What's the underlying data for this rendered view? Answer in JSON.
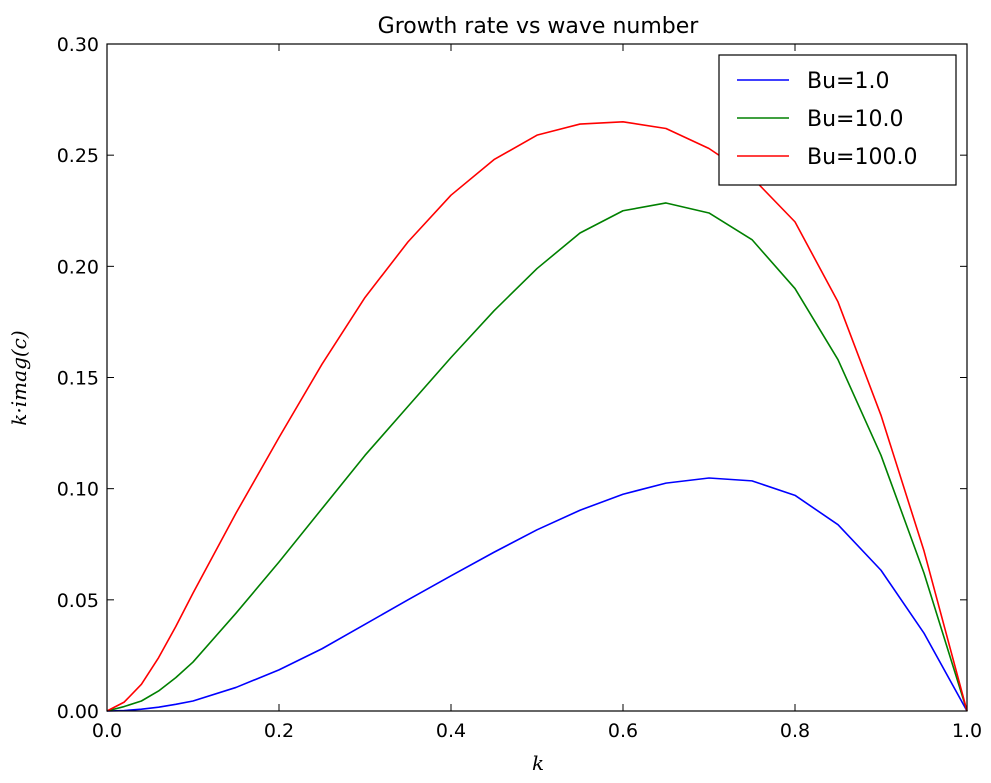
{
  "chart_data": {
    "type": "line",
    "title": "Growth rate vs wave number",
    "xlabel": "k",
    "ylabel": "k·imag(c)",
    "xlim": [
      0.0,
      1.0
    ],
    "ylim": [
      0.0,
      0.3
    ],
    "x_ticks": [
      "0.0",
      "0.2",
      "0.4",
      "0.6",
      "0.8",
      "1.0"
    ],
    "y_ticks": [
      "0.00",
      "0.05",
      "0.10",
      "0.15",
      "0.20",
      "0.25",
      "0.30"
    ],
    "grid": false,
    "legend_position": "top-right",
    "x": [
      0.0,
      0.02,
      0.04,
      0.06,
      0.08,
      0.1,
      0.15,
      0.2,
      0.25,
      0.3,
      0.35,
      0.4,
      0.45,
      0.5,
      0.55,
      0.6,
      0.65,
      0.7,
      0.75,
      0.8,
      0.85,
      0.9,
      0.95,
      1.0
    ],
    "series": [
      {
        "name": "Bu=1.0",
        "color": "#0000ff",
        "values": [
          0.0,
          0.0002,
          0.0008,
          0.0017,
          0.003,
          0.0045,
          0.0106,
          0.0185,
          0.028,
          0.039,
          0.05,
          0.0608,
          0.0714,
          0.0815,
          0.0903,
          0.0975,
          0.1025,
          0.1048,
          0.1035,
          0.097,
          0.0838,
          0.0633,
          0.035,
          0.0
        ]
      },
      {
        "name": "Bu=10.0",
        "color": "#008000",
        "values": [
          0.0,
          0.002,
          0.0045,
          0.009,
          0.015,
          0.022,
          0.044,
          0.067,
          0.091,
          0.115,
          0.137,
          0.159,
          0.18,
          0.199,
          0.215,
          0.225,
          0.2285,
          0.224,
          0.212,
          0.19,
          0.158,
          0.115,
          0.062,
          0.0
        ]
      },
      {
        "name": "Bu=100.0",
        "color": "#ff0000",
        "values": [
          0.0,
          0.004,
          0.012,
          0.024,
          0.038,
          0.053,
          0.089,
          0.123,
          0.156,
          0.186,
          0.211,
          0.232,
          0.248,
          0.259,
          0.264,
          0.265,
          0.262,
          0.253,
          0.24,
          0.22,
          0.184,
          0.133,
          0.072,
          0.0
        ]
      }
    ]
  }
}
